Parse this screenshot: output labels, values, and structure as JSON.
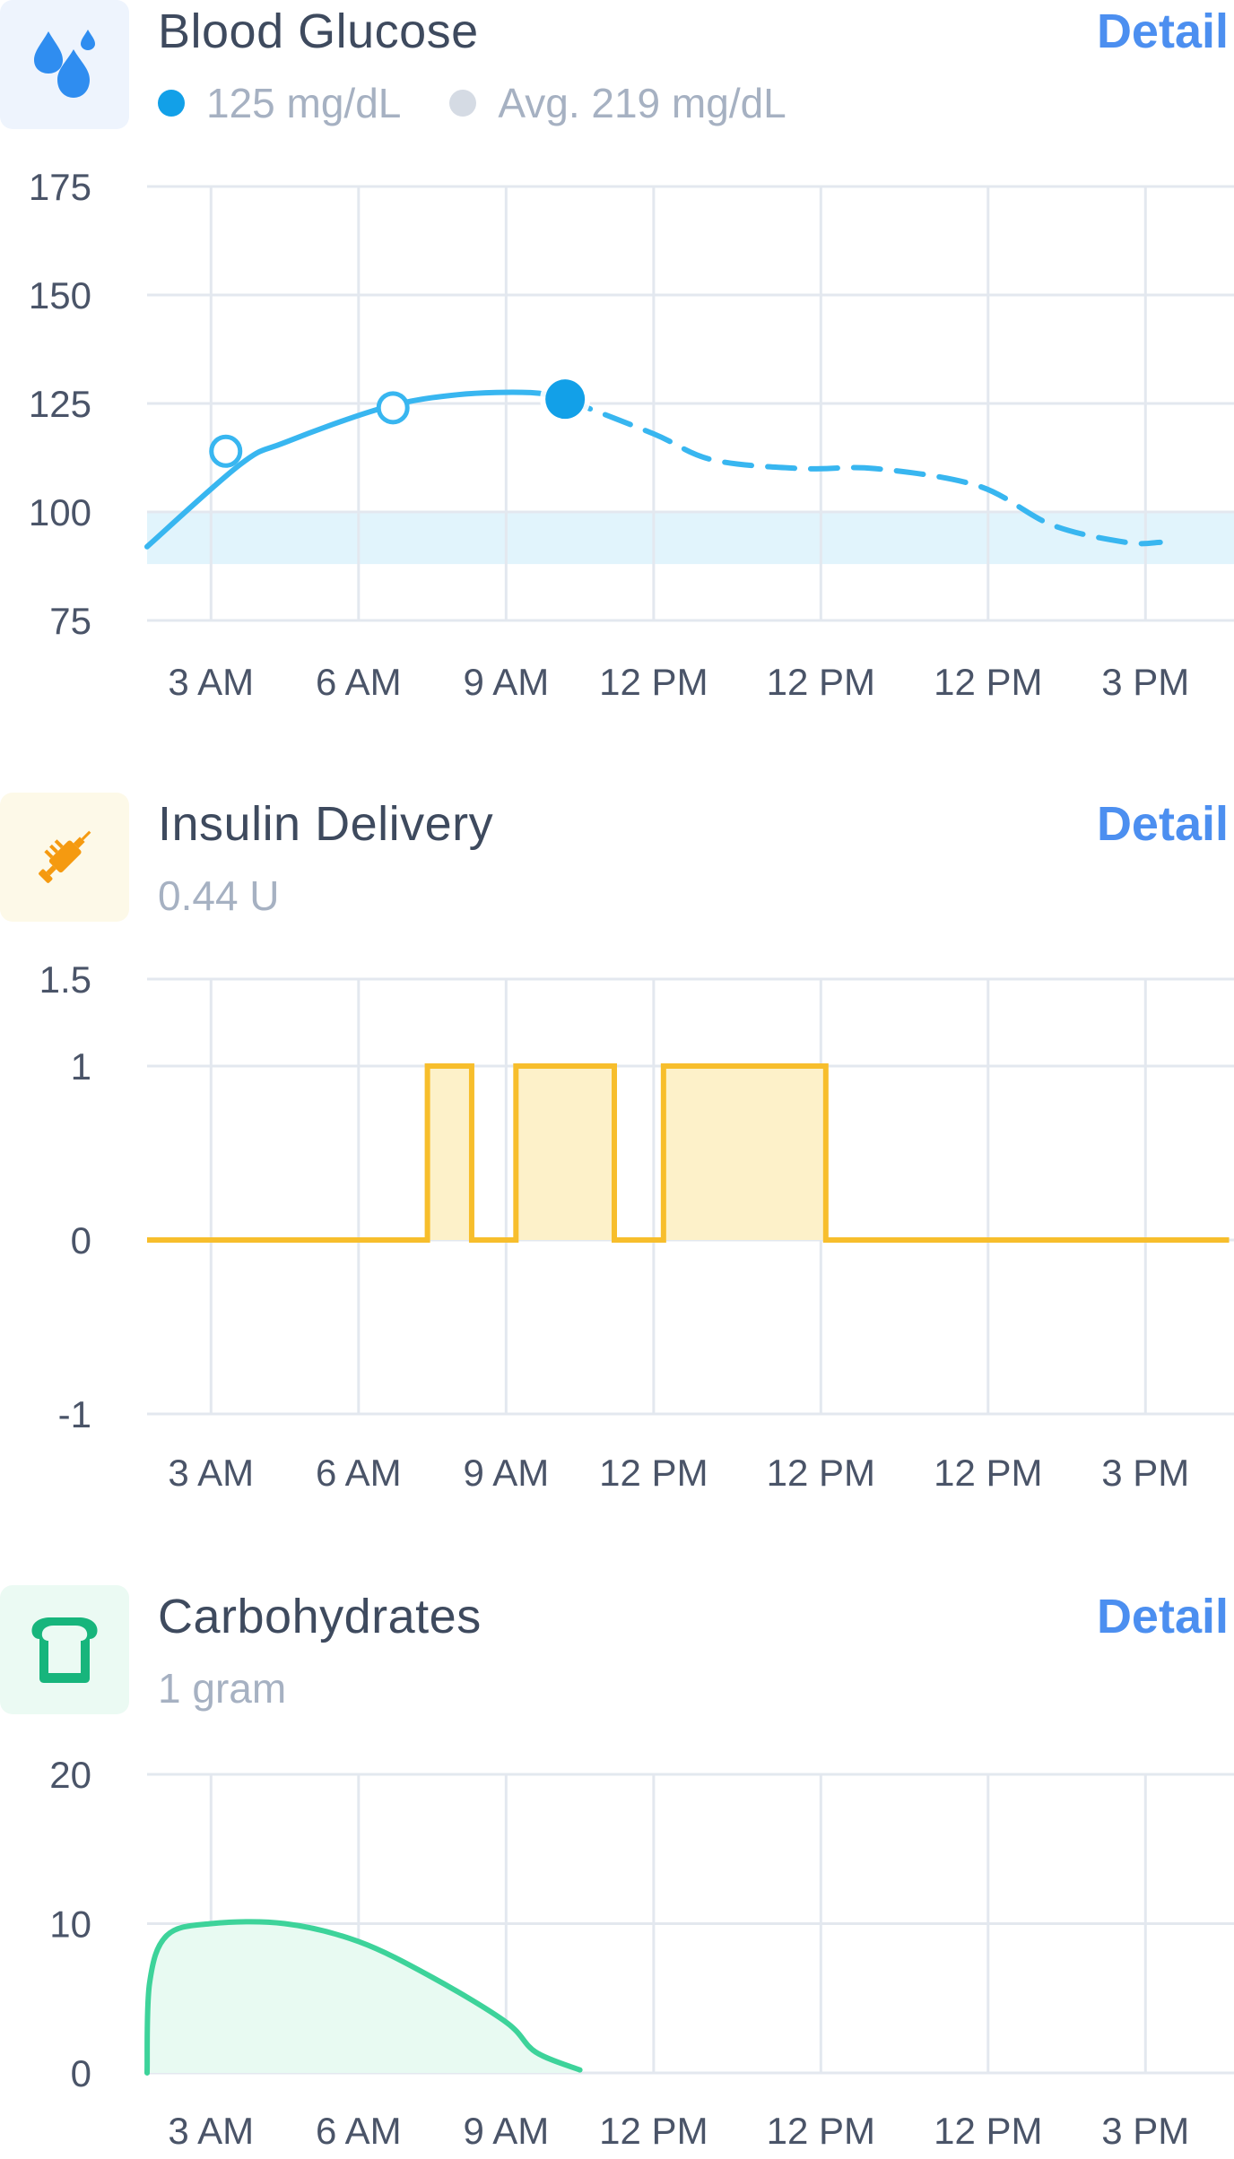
{
  "colors": {
    "glucose": "#38b6f0",
    "glucose_dot": "#12a0e8",
    "target_band": "#e1f4fc",
    "insulin": "#f7be2c",
    "insulin_fill": "#fdf1c9",
    "carbs": "#3dd39a",
    "carbs_fill": "#e8faf2",
    "grid": "#e3e8ef",
    "detail": "#4c8ff0"
  },
  "blood_glucose": {
    "icon": "water-drops-icon",
    "title": "Blood Glucose",
    "detail_label": "Detail",
    "current_value": "125 mg/dL",
    "average": "Avg. 219 mg/dL"
  },
  "insulin": {
    "icon": "syringe-icon",
    "title": "Insulin Delivery",
    "detail_label": "Detail",
    "value": "0.44 U"
  },
  "carbs": {
    "icon": "bread-icon",
    "title": "Carbohydrates",
    "detail_label": "Detail",
    "value": "1 gram"
  },
  "chart_data": [
    {
      "type": "line",
      "x_tick_labels": [
        "3 AM",
        "6 AM",
        "9 AM",
        "12 PM",
        "12 PM",
        "12 PM",
        "3 PM"
      ],
      "y_ticks": [
        "175",
        "150",
        "125",
        "100",
        "75"
      ],
      "ylim": [
        75,
        175
      ],
      "target_range": [
        88,
        100
      ],
      "series": [
        {
          "style": "solid",
          "points": [
            [
              1.7,
              92
            ],
            [
              3.6,
              111
            ],
            [
              4.5,
              116
            ],
            [
              6.5,
              124
            ],
            [
              8,
              127
            ],
            [
              9.5,
              127.5
            ],
            [
              10.2,
              126
            ]
          ]
        },
        {
          "style": "dashed",
          "points": [
            [
              10.2,
              126
            ],
            [
              12,
              118
            ],
            [
              13.2,
              112
            ],
            [
              15,
              110
            ],
            [
              16.5,
              110
            ],
            [
              18.6,
              106
            ],
            [
              20.1,
              97
            ],
            [
              21.6,
              93
            ],
            [
              22.3,
              93
            ]
          ]
        }
      ],
      "markers": [
        {
          "x": 3.3,
          "y": 114,
          "style": "hollow"
        },
        {
          "x": 6.7,
          "y": 124,
          "style": "hollow"
        },
        {
          "x": 10.2,
          "y": 126,
          "style": "filled"
        }
      ]
    },
    {
      "type": "area",
      "x_tick_labels": [
        "3 AM",
        "6 AM",
        "9 AM",
        "12 PM",
        "12 PM",
        "12 PM",
        "3 PM"
      ],
      "y_ticks": [
        "1.5",
        "1",
        "0",
        "-1"
      ],
      "ylim": [
        -1,
        1.5
      ],
      "step_segments": [
        {
          "x0": 1.7,
          "x1": 7.4,
          "y": 0
        },
        {
          "x0": 7.4,
          "x1": 8.3,
          "y": 1
        },
        {
          "x0": 8.3,
          "x1": 9.2,
          "y": 0
        },
        {
          "x0": 9.2,
          "x1": 11.2,
          "y": 1
        },
        {
          "x0": 11.2,
          "x1": 12.2,
          "y": 0
        },
        {
          "x0": 12.2,
          "x1": 15.5,
          "y": 1
        },
        {
          "x0": 15.5,
          "x1": 23.7,
          "y": 0
        }
      ]
    },
    {
      "type": "area",
      "x_tick_labels": [
        "3 AM",
        "6 AM",
        "9 AM",
        "12 PM",
        "12 PM",
        "12 PM",
        "3 PM"
      ],
      "y_ticks": [
        "20",
        "10",
        "0"
      ],
      "ylim": [
        0,
        20
      ],
      "points": [
        [
          1.7,
          0
        ],
        [
          1.75,
          6
        ],
        [
          2.1,
          9.2
        ],
        [
          3,
          10
        ],
        [
          4.5,
          10
        ],
        [
          6,
          8.8
        ],
        [
          7.5,
          6.4
        ],
        [
          9,
          3.4
        ],
        [
          9.6,
          1.4
        ],
        [
          10.5,
          0.2
        ]
      ]
    }
  ]
}
